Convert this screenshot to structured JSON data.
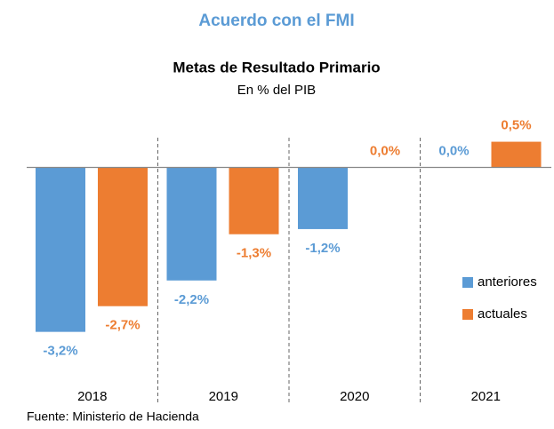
{
  "chart_data": {
    "type": "bar",
    "header": "Acuerdo con el FMI",
    "title": "Metas de Resultado Primario",
    "subtitle": "En % del PIB",
    "source": "Fuente: Ministerio de Hacienda",
    "categories": [
      "2018",
      "2019",
      "2020",
      "2021"
    ],
    "series": [
      {
        "name": "anteriores",
        "color": "#5b9bd5",
        "values": [
          -3.2,
          -2.2,
          -1.2,
          0.0
        ],
        "value_labels": [
          "-3,2%",
          "-2,2%",
          "-1,2%",
          "0,0%"
        ]
      },
      {
        "name": "actuales",
        "color": "#ed7d31",
        "values": [
          -2.7,
          -1.3,
          0.0,
          0.5
        ],
        "value_labels": [
          "-2,7%",
          "-1,3%",
          "0,0%",
          "0,5%"
        ]
      }
    ],
    "ylim": [
      -3.5,
      0.7
    ],
    "legend": "right"
  }
}
